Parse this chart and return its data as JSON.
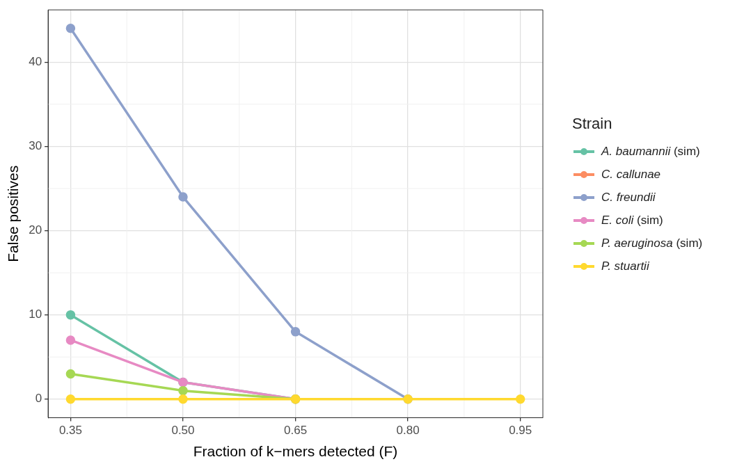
{
  "chart_data": {
    "type": "line",
    "xlabel": "Fraction of k−mers detected (F)",
    "ylabel": "False positives",
    "legend_title": "Strain",
    "legend": "right",
    "grid": true,
    "marker": "circle",
    "line_style": "solid",
    "x": [
      0.35,
      0.5,
      0.65,
      0.8,
      0.95
    ],
    "xlim": [
      0.32,
      0.98
    ],
    "xticks": [
      {
        "value": 0.35,
        "label": "0.35"
      },
      {
        "value": 0.5,
        "label": "0.50"
      },
      {
        "value": 0.65,
        "label": "0.65"
      },
      {
        "value": 0.8,
        "label": "0.80"
      },
      {
        "value": 0.95,
        "label": "0.95"
      }
    ],
    "ylim": [
      -2.2,
      46.2
    ],
    "yticks": [
      0,
      10,
      20,
      30,
      40
    ],
    "series": [
      {
        "name": "A. baumannii (sim)",
        "color": "#66c2a5",
        "values": [
          10,
          2,
          0,
          null,
          null
        ]
      },
      {
        "name": "C. callunae",
        "color": "#fc8d62",
        "values": [
          null,
          null,
          null,
          null,
          null
        ]
      },
      {
        "name": "C. freundii",
        "color": "#8da0cb",
        "values": [
          44,
          24,
          8,
          0,
          null
        ]
      },
      {
        "name": "E. coli (sim)",
        "color": "#e78ac3",
        "values": [
          7,
          2,
          0,
          null,
          null
        ]
      },
      {
        "name": "P. aeruginosa (sim)",
        "color": "#a6d854",
        "values": [
          3,
          1,
          0,
          null,
          null
        ]
      },
      {
        "name": "P. stuartii",
        "color": "#ffd92f",
        "values": [
          0,
          0,
          0,
          0,
          0
        ]
      }
    ]
  }
}
